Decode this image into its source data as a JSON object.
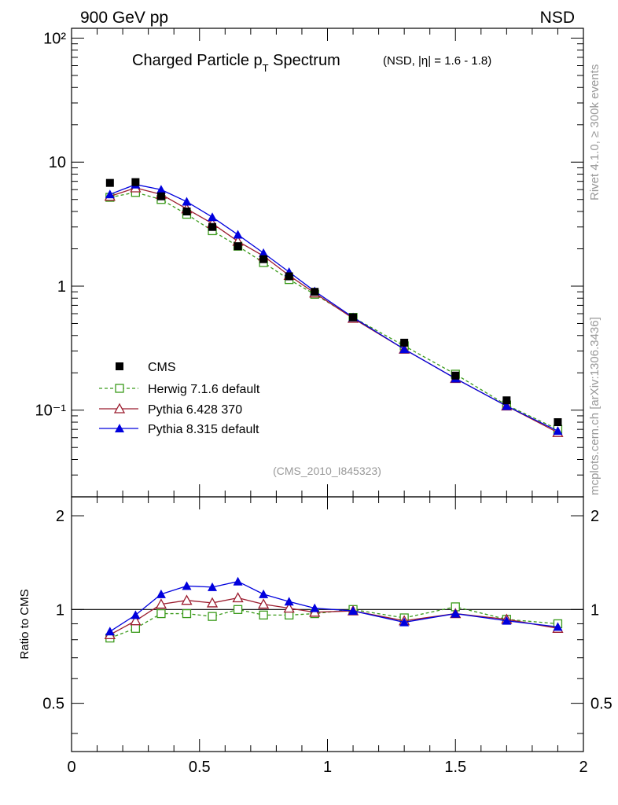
{
  "header": {
    "left": "900 GeV pp",
    "right": "NSD"
  },
  "side_labels": {
    "rivet": "Rivet 4.1.0, ≥ 300k events",
    "mcplots": "mcplots.cern.ch [arXiv:1306.3436]"
  },
  "colors": {
    "cms": "#000000",
    "herwig": "#3a9a1a",
    "pythia6": "#9b1c2e",
    "pythia8": "#0000dd",
    "watermark": "#999999"
  },
  "chart_data": {
    "type": "line",
    "title_main": "Charged Particle p",
    "title_sub": "T",
    "title_rest": " Spectrum",
    "title_small": "(NSD, |η| = 1.6 - 1.8)",
    "watermark": "(CMS_2010_I845323)",
    "xlim": [
      0,
      2
    ],
    "ylim_main": [
      0.02,
      120
    ],
    "ylim_ratio": [
      0.35,
      2.3
    ],
    "ratio_ylabel": "Ratio to CMS",
    "x_ticks": [
      "0",
      "0.5",
      "1",
      "1.5",
      "2"
    ],
    "main_ticks": [
      "10⁻¹",
      "1",
      "10",
      "10²"
    ],
    "ratio_ticks": [
      "0.5",
      "1",
      "2"
    ],
    "x": [
      0.15,
      0.25,
      0.35,
      0.45,
      0.55,
      0.65,
      0.75,
      0.85,
      0.95,
      1.1,
      1.3,
      1.5,
      1.7,
      1.9
    ],
    "series": [
      {
        "name": "CMS",
        "key": "cms",
        "marker": "square-filled",
        "values": [
          6.8,
          6.9,
          5.3,
          4.0,
          3.0,
          2.1,
          1.65,
          1.2,
          0.9,
          0.56,
          0.35,
          0.19,
          0.12,
          0.08
        ]
      },
      {
        "name": "Herwig 7.1.6 default",
        "key": "herwig",
        "marker": "square-open",
        "dashed": true,
        "values": [
          5.2,
          5.7,
          5.0,
          3.8,
          2.8,
          2.1,
          1.55,
          1.13,
          0.86,
          0.56,
          0.33,
          0.195,
          0.11,
          0.07
        ],
        "ratio": [
          0.81,
          0.87,
          0.97,
          0.97,
          0.95,
          1.0,
          0.96,
          0.96,
          0.97,
          1.0,
          0.94,
          1.02,
          0.93,
          0.9
        ]
      },
      {
        "name": "Pythia 6.428 370",
        "key": "pythia6",
        "marker": "triangle-open",
        "values": [
          5.3,
          6.2,
          5.5,
          4.2,
          3.2,
          2.3,
          1.75,
          1.22,
          0.88,
          0.55,
          0.31,
          0.18,
          0.108,
          0.066
        ],
        "ratio": [
          0.83,
          0.92,
          1.04,
          1.07,
          1.05,
          1.09,
          1.04,
          1.01,
          0.98,
          0.99,
          0.92,
          0.97,
          0.93,
          0.87
        ]
      },
      {
        "name": "Pythia 8.315 default",
        "key": "pythia8",
        "marker": "triangle-filled",
        "values": [
          5.5,
          6.6,
          6.0,
          4.8,
          3.6,
          2.6,
          1.85,
          1.3,
          0.91,
          0.56,
          0.31,
          0.18,
          0.108,
          0.068
        ],
        "ratio": [
          0.85,
          0.96,
          1.12,
          1.19,
          1.18,
          1.23,
          1.12,
          1.06,
          1.01,
          0.99,
          0.91,
          0.97,
          0.92,
          0.88
        ]
      }
    ]
  }
}
